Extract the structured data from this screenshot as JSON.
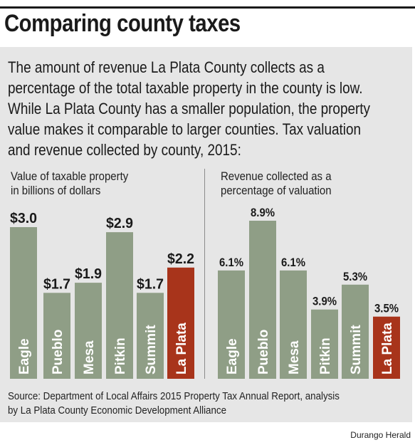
{
  "headline": "Comparing county taxes",
  "intro_lines": [
    "The amount of revenue La Plata County collects as a",
    "percentage of the total taxable property in the county is low.",
    "While La Plata County has a smaller population, the property",
    "value makes it comparable to larger counties. Tax valuation",
    "and revenue collected by county, 2015:"
  ],
  "colors": {
    "bar": "#8f9e86",
    "highlight": "#a8341b",
    "panel": "#e6e6e6"
  },
  "chart_data": [
    {
      "type": "bar",
      "title_lines": [
        "Value of taxable property",
        "in billions of dollars"
      ],
      "categories": [
        "Eagle",
        "Pueblo",
        "Mesa",
        "Pitkin",
        "Summit",
        "La Plata"
      ],
      "values": [
        3.0,
        1.7,
        1.9,
        2.9,
        1.7,
        2.2
      ],
      "labels": [
        "$3.0",
        "$1.7",
        "$1.9",
        "$2.9",
        "$1.7",
        "$2.2"
      ],
      "highlight": "La Plata"
    },
    {
      "type": "bar",
      "title_lines": [
        "Revenue collected as a",
        "percentage of valuation"
      ],
      "categories": [
        "Eagle",
        "Pueblo",
        "Mesa",
        "Pitkin",
        "Summit",
        "La Plata"
      ],
      "values": [
        6.1,
        8.9,
        6.1,
        3.9,
        5.3,
        3.5
      ],
      "labels": [
        "6.1%",
        "8.9%",
        "6.1%",
        "3.9%",
        "5.3%",
        "3.5%"
      ],
      "highlight": "La Plata"
    }
  ],
  "source_lines": [
    "Source: Department of Local Affairs 2015 Property Tax Annual Report, analysis",
    "by La Plata County Economic Development Alliance"
  ],
  "credit": "Durango Herald"
}
